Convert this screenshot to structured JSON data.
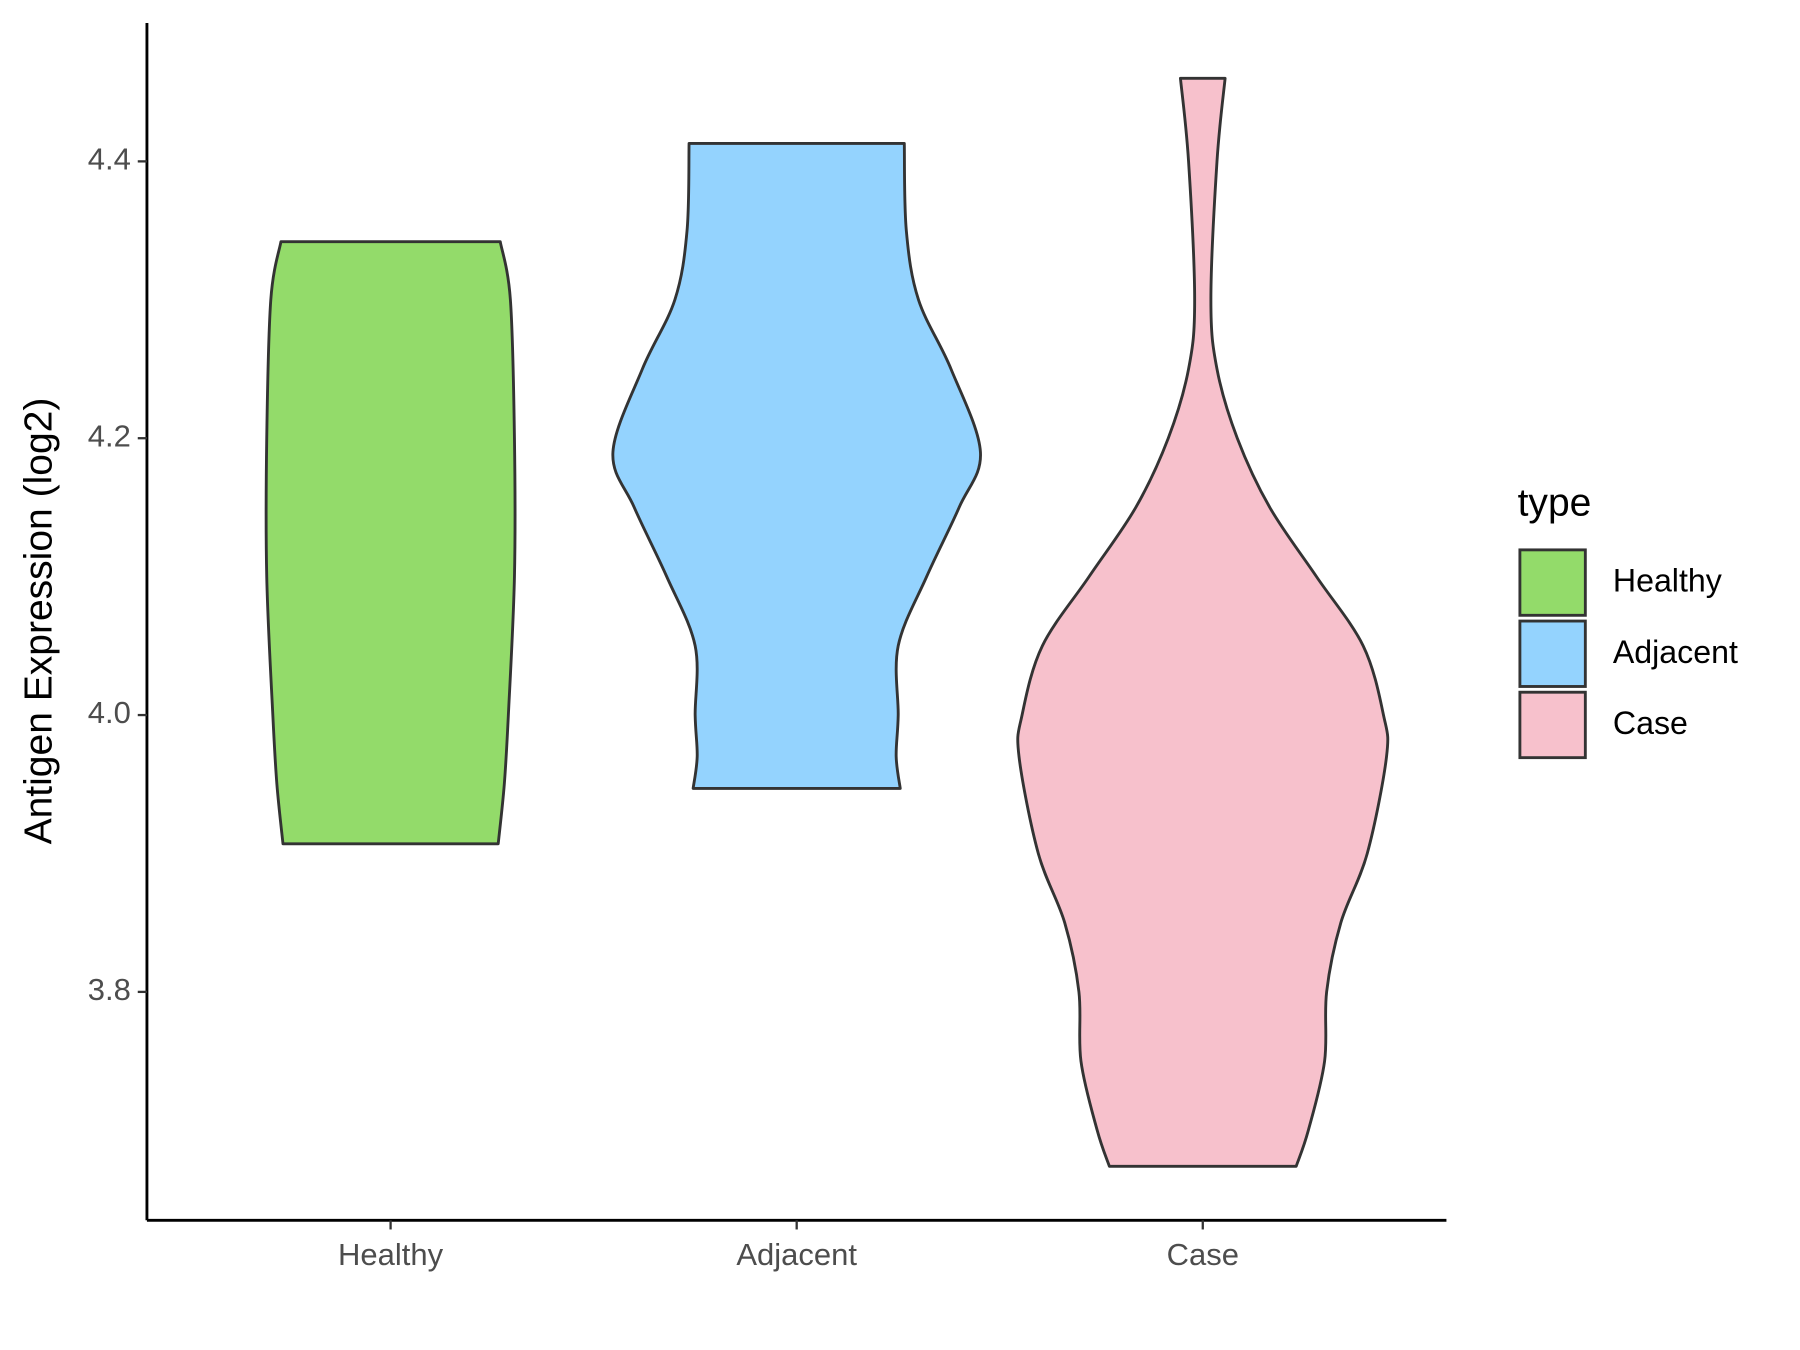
{
  "chart_data": {
    "type": "violin",
    "ylabel": "Antigen Expression (log2)",
    "categories": [
      "Healthy",
      "Adjacent",
      "Case"
    ],
    "legend_title": "type",
    "legend": "right",
    "ylim": [
      3.635,
      4.5
    ],
    "yticks": [
      3.8,
      {
        "value": 4,
        "label": "4.0"
      },
      4.2,
      4.4
    ],
    "outline": "#333333",
    "series": [
      {
        "name": "Healthy",
        "color": "#93db6a",
        "levels": [
          3.907,
          3.95,
          4.0,
          4.1,
          4.2,
          4.3,
          4.342
        ],
        "widths": [
          0.53,
          0.56,
          0.58,
          0.61,
          0.61,
          0.59,
          0.54
        ]
      },
      {
        "name": "Adjacent",
        "color": "#94d3fe",
        "levels": [
          3.947,
          3.97,
          4.0,
          4.05,
          4.1,
          4.15,
          4.19,
          4.25,
          4.3,
          4.35,
          4.413
        ],
        "widths": [
          0.51,
          0.49,
          0.5,
          0.5,
          0.64,
          0.8,
          0.905,
          0.76,
          0.6,
          0.54,
          0.53
        ]
      },
      {
        "name": "Case",
        "color": "#f7c1cc",
        "levels": [
          3.674,
          3.7,
          3.75,
          3.8,
          3.85,
          3.9,
          3.97,
          4.0,
          4.05,
          4.1,
          4.15,
          4.2,
          4.25,
          4.3,
          4.4,
          4.46
        ],
        "widths": [
          0.46,
          0.52,
          0.6,
          0.61,
          0.68,
          0.81,
          0.905,
          0.89,
          0.79,
          0.56,
          0.33,
          0.17,
          0.07,
          0.04,
          0.07,
          0.11
        ]
      }
    ]
  }
}
